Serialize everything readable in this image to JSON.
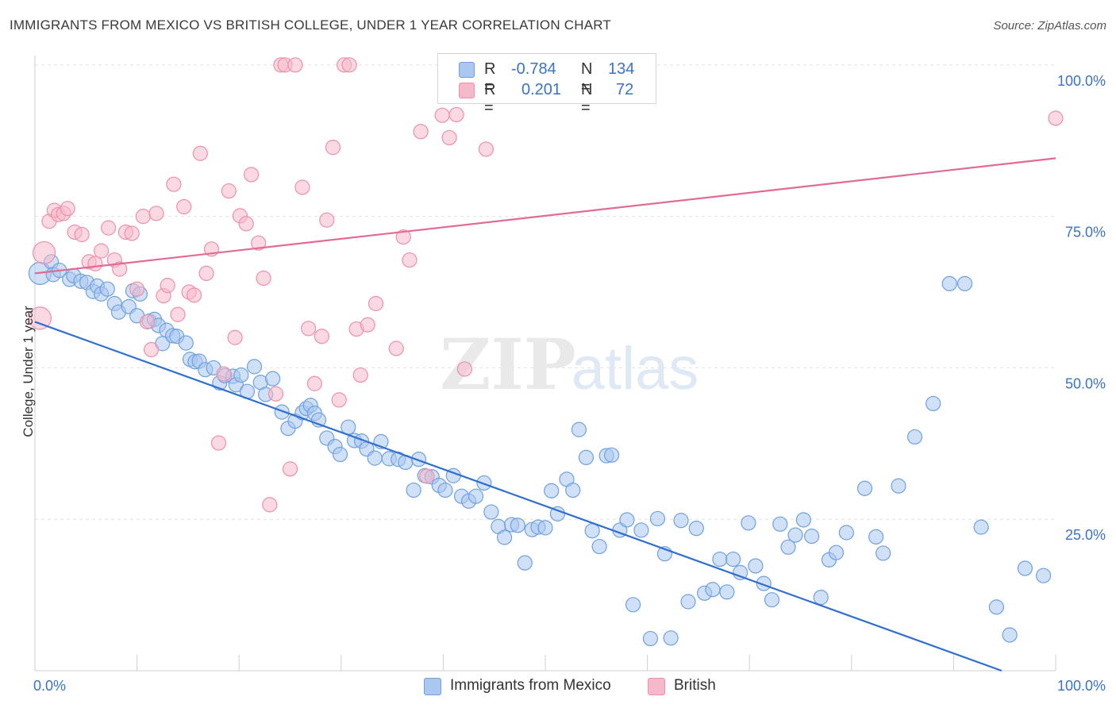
{
  "title": "IMMIGRANTS FROM MEXICO VS BRITISH COLLEGE, UNDER 1 YEAR CORRELATION CHART",
  "source": "Source: ZipAtlas.com",
  "watermark": {
    "zip": "ZIP",
    "atlas": "atlas"
  },
  "legend_top": {
    "rows": [
      {
        "r_label": "R =",
        "r_value": "-0.784",
        "n_label": "N =",
        "n_value": "134",
        "color": "#a9c7ef"
      },
      {
        "r_label": "R =",
        "r_value": "0.201",
        "n_label": "N =",
        "n_value": "72",
        "color": "#f6b9cb"
      }
    ]
  },
  "legend_bottom": [
    {
      "label": "Immigrants from Mexico",
      "color": "#a9c7ef"
    },
    {
      "label": "British",
      "color": "#f6b9cb"
    }
  ],
  "chart_data": {
    "type": "scatter",
    "ylabel": "College, Under 1 year",
    "xlim": [
      0,
      100
    ],
    "ylim": [
      0,
      100
    ],
    "x_tick_labels": [
      {
        "value": 0,
        "label": "0.0%"
      },
      {
        "value": 100,
        "label": "100.0%"
      }
    ],
    "y_tick_labels": [
      {
        "value": 25,
        "label": "25.0%"
      },
      {
        "value": 50,
        "label": "50.0%"
      },
      {
        "value": 75,
        "label": "75.0%"
      },
      {
        "value": 100,
        "label": "100.0%"
      }
    ],
    "grid": true,
    "series": [
      {
        "name": "Immigrants from Mexico",
        "color": "#6fa1e0",
        "fill": "#a9c7ef",
        "line_color": "#2f6fcf",
        "trend": {
          "x0": 0,
          "y0": 57.6,
          "x1": 94.7,
          "y1": 0
        },
        "points": [
          [
            0.5,
            65.6
          ],
          [
            1.6,
            67.5
          ],
          [
            1.8,
            65.4
          ],
          [
            2.4,
            66.1
          ],
          [
            3.4,
            64.6
          ],
          [
            3.8,
            65.2
          ],
          [
            4.5,
            64.3
          ],
          [
            5.1,
            64.1
          ],
          [
            5.7,
            62.6
          ],
          [
            6.1,
            63.5
          ],
          [
            6.5,
            62.2
          ],
          [
            7.1,
            63.0
          ],
          [
            7.8,
            60.6
          ],
          [
            8.2,
            59.2
          ],
          [
            9.2,
            60.1
          ],
          [
            9.6,
            62.7
          ],
          [
            10.0,
            58.6
          ],
          [
            10.3,
            62.2
          ],
          [
            11.2,
            57.7
          ],
          [
            11.7,
            58.0
          ],
          [
            12.1,
            57.0
          ],
          [
            12.5,
            54.0
          ],
          [
            12.9,
            56.2
          ],
          [
            13.5,
            55.3
          ],
          [
            13.9,
            55.2
          ],
          [
            14.8,
            54.1
          ],
          [
            15.2,
            51.4
          ],
          [
            15.7,
            51.0
          ],
          [
            16.1,
            51.1
          ],
          [
            16.7,
            49.7
          ],
          [
            17.5,
            50.0
          ],
          [
            18.1,
            47.5
          ],
          [
            18.6,
            48.7
          ],
          [
            19.4,
            48.6
          ],
          [
            19.7,
            47.2
          ],
          [
            20.2,
            48.8
          ],
          [
            20.8,
            46.1
          ],
          [
            21.5,
            50.2
          ],
          [
            22.1,
            47.6
          ],
          [
            22.6,
            45.6
          ],
          [
            23.3,
            48.2
          ],
          [
            24.2,
            42.7
          ],
          [
            24.8,
            40.0
          ],
          [
            25.5,
            41.2
          ],
          [
            26.2,
            42.6
          ],
          [
            26.6,
            43.3
          ],
          [
            27.0,
            43.8
          ],
          [
            27.4,
            42.5
          ],
          [
            27.8,
            41.4
          ],
          [
            28.6,
            38.4
          ],
          [
            29.4,
            37.0
          ],
          [
            29.9,
            35.7
          ],
          [
            30.7,
            40.2
          ],
          [
            31.3,
            38.0
          ],
          [
            32.0,
            37.9
          ],
          [
            32.5,
            36.6
          ],
          [
            33.3,
            35.1
          ],
          [
            33.9,
            37.8
          ],
          [
            34.7,
            35.0
          ],
          [
            35.6,
            34.9
          ],
          [
            36.3,
            34.4
          ],
          [
            37.1,
            29.8
          ],
          [
            37.6,
            34.9
          ],
          [
            38.2,
            32.2
          ],
          [
            38.9,
            32.0
          ],
          [
            39.6,
            30.6
          ],
          [
            40.2,
            29.8
          ],
          [
            41.0,
            32.2
          ],
          [
            41.8,
            28.8
          ],
          [
            42.5,
            28.0
          ],
          [
            43.2,
            28.8
          ],
          [
            44.0,
            31.0
          ],
          [
            44.7,
            26.2
          ],
          [
            45.4,
            23.8
          ],
          [
            46.0,
            22.0
          ],
          [
            46.7,
            24.1
          ],
          [
            47.3,
            24.0
          ],
          [
            48.0,
            17.8
          ],
          [
            48.7,
            23.3
          ],
          [
            49.3,
            23.7
          ],
          [
            50.0,
            23.6
          ],
          [
            50.6,
            29.7
          ],
          [
            51.2,
            25.9
          ],
          [
            52.1,
            31.6
          ],
          [
            52.7,
            29.8
          ],
          [
            53.3,
            39.8
          ],
          [
            54.0,
            35.2
          ],
          [
            54.6,
            23.1
          ],
          [
            55.3,
            20.5
          ],
          [
            56.0,
            35.5
          ],
          [
            56.5,
            35.6
          ],
          [
            57.3,
            23.2
          ],
          [
            58.0,
            24.9
          ],
          [
            58.6,
            10.9
          ],
          [
            59.4,
            23.2
          ],
          [
            60.3,
            5.3
          ],
          [
            61.0,
            25.1
          ],
          [
            61.7,
            19.3
          ],
          [
            62.3,
            5.4
          ],
          [
            63.3,
            24.8
          ],
          [
            64.0,
            11.4
          ],
          [
            64.8,
            23.5
          ],
          [
            65.6,
            12.8
          ],
          [
            66.4,
            13.4
          ],
          [
            67.1,
            18.4
          ],
          [
            67.8,
            13.0
          ],
          [
            68.4,
            18.4
          ],
          [
            69.1,
            16.2
          ],
          [
            69.9,
            24.4
          ],
          [
            70.6,
            17.3
          ],
          [
            71.4,
            14.4
          ],
          [
            72.2,
            11.7
          ],
          [
            73.0,
            24.2
          ],
          [
            73.8,
            20.4
          ],
          [
            74.5,
            22.4
          ],
          [
            75.3,
            24.9
          ],
          [
            76.1,
            22.2
          ],
          [
            77.0,
            12.1
          ],
          [
            77.8,
            18.3
          ],
          [
            78.5,
            19.5
          ],
          [
            79.5,
            22.8
          ],
          [
            81.3,
            30.1
          ],
          [
            82.4,
            22.1
          ],
          [
            83.1,
            19.4
          ],
          [
            84.6,
            30.5
          ],
          [
            86.2,
            38.6
          ],
          [
            88.0,
            44.1
          ],
          [
            89.6,
            63.9
          ],
          [
            91.1,
            63.9
          ],
          [
            92.7,
            23.7
          ],
          [
            94.2,
            10.5
          ],
          [
            95.5,
            5.9
          ],
          [
            97.0,
            16.9
          ],
          [
            98.8,
            15.7
          ]
        ]
      },
      {
        "name": "British",
        "color": "#ee8fab",
        "fill": "#f6b9cb",
        "line_color": "#e06b94",
        "trend": {
          "x0": 0,
          "y0": 65.6,
          "x1": 100,
          "y1": 84.6
        },
        "points": [
          [
            0.5,
            58.2
          ],
          [
            0.9,
            69.0
          ],
          [
            1.4,
            74.2
          ],
          [
            1.9,
            76.0
          ],
          [
            2.3,
            75.3
          ],
          [
            2.8,
            75.5
          ],
          [
            3.2,
            76.3
          ],
          [
            3.9,
            72.4
          ],
          [
            4.6,
            72.0
          ],
          [
            5.3,
            67.5
          ],
          [
            5.9,
            67.2
          ],
          [
            6.5,
            69.3
          ],
          [
            7.2,
            73.1
          ],
          [
            7.8,
            67.8
          ],
          [
            8.3,
            66.3
          ],
          [
            8.9,
            72.4
          ],
          [
            9.5,
            72.2
          ],
          [
            10.0,
            63.0
          ],
          [
            10.6,
            75.0
          ],
          [
            11.0,
            57.6
          ],
          [
            11.4,
            53.0
          ],
          [
            11.9,
            75.5
          ],
          [
            12.6,
            61.9
          ],
          [
            13.0,
            63.6
          ],
          [
            13.6,
            80.3
          ],
          [
            14.0,
            58.8
          ],
          [
            14.6,
            76.6
          ],
          [
            15.1,
            62.5
          ],
          [
            15.6,
            62.0
          ],
          [
            16.2,
            85.4
          ],
          [
            16.8,
            65.6
          ],
          [
            17.3,
            69.6
          ],
          [
            18.0,
            37.6
          ],
          [
            18.5,
            49.0
          ],
          [
            19.0,
            79.2
          ],
          [
            19.6,
            55.0
          ],
          [
            20.1,
            75.1
          ],
          [
            20.7,
            73.8
          ],
          [
            21.2,
            81.9
          ],
          [
            21.9,
            70.6
          ],
          [
            22.4,
            64.8
          ],
          [
            23.0,
            27.4
          ],
          [
            23.6,
            45.7
          ],
          [
            24.1,
            100.0
          ],
          [
            24.5,
            100.0
          ],
          [
            25.0,
            33.3
          ],
          [
            25.5,
            100.0
          ],
          [
            26.2,
            79.8
          ],
          [
            26.8,
            56.5
          ],
          [
            27.4,
            47.4
          ],
          [
            28.1,
            55.2
          ],
          [
            28.6,
            74.4
          ],
          [
            29.2,
            86.4
          ],
          [
            29.8,
            44.7
          ],
          [
            30.3,
            100.0
          ],
          [
            30.8,
            100.0
          ],
          [
            31.5,
            56.4
          ],
          [
            31.9,
            48.8
          ],
          [
            32.6,
            57.1
          ],
          [
            33.4,
            60.6
          ],
          [
            35.4,
            53.2
          ],
          [
            36.1,
            71.6
          ],
          [
            36.7,
            67.8
          ],
          [
            37.8,
            89.0
          ],
          [
            38.4,
            32.1
          ],
          [
            39.9,
            91.7
          ],
          [
            40.6,
            88.0
          ],
          [
            41.3,
            91.8
          ],
          [
            42.1,
            49.8
          ],
          [
            43.5,
            100.0
          ],
          [
            44.2,
            86.1
          ],
          [
            100.0,
            91.2
          ]
        ]
      }
    ]
  }
}
